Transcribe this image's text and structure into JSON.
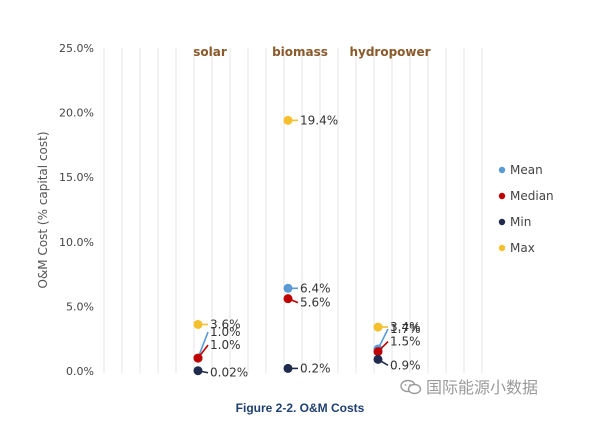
{
  "chart_data": {
    "type": "scatter",
    "categories": [
      "solar",
      "biomass",
      "hydropower"
    ],
    "ylabel": "O&M Cost (% capital cost)",
    "yticks": [
      "0.0%",
      "5.0%",
      "10.0%",
      "15.0%",
      "20.0%",
      "25.0%"
    ],
    "ylim": [
      0,
      25
    ],
    "grid": "vertical",
    "legend_position": "right",
    "colors": {
      "Mean": "#5b9bd5",
      "Median": "#c00000",
      "Min": "#1f2a4d",
      "Max": "#f5c02d",
      "category_label": "#8a5a2b"
    },
    "series": [
      {
        "name": "Mean",
        "values": [
          1.0,
          6.4,
          1.7
        ],
        "labels": [
          "1.0%",
          "6.4%",
          "1.7%"
        ]
      },
      {
        "name": "Median",
        "values": [
          1.0,
          5.6,
          1.5
        ],
        "labels": [
          "1.0%",
          "5.6%",
          "1.5%"
        ]
      },
      {
        "name": "Min",
        "values": [
          0.02,
          0.2,
          0.9
        ],
        "labels": [
          "0.02%",
          "0.2%",
          "0.9%"
        ]
      },
      {
        "name": "Max",
        "values": [
          3.6,
          19.4,
          3.4
        ],
        "labels": [
          "3.6%",
          "19.4%",
          "3.4%"
        ]
      }
    ],
    "caption": "Figure 2-2. O&M Costs"
  },
  "watermark": {
    "icon": "wechat-icon",
    "text": "国际能源小数据"
  }
}
